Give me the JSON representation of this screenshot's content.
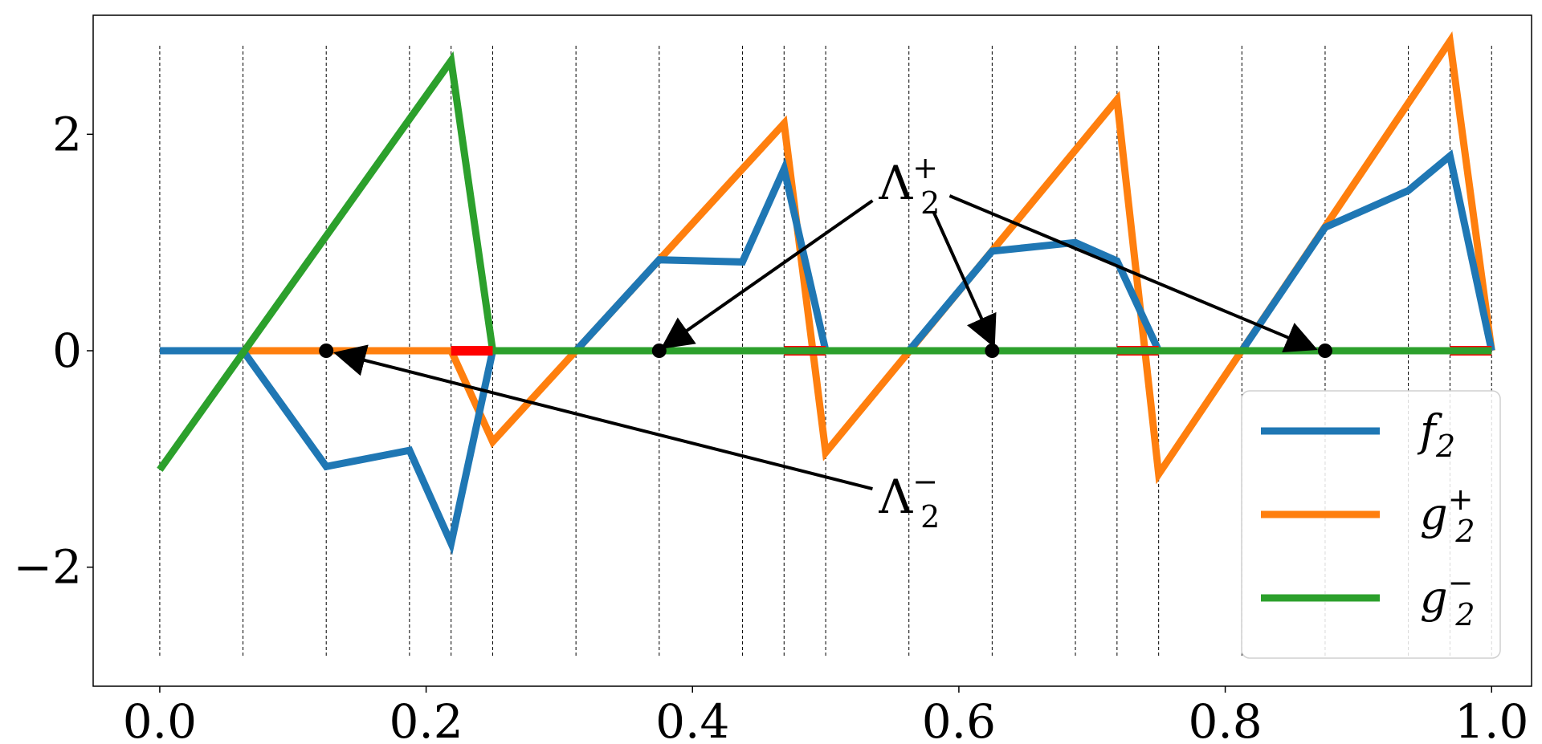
{
  "chart_data": {
    "type": "line",
    "xlim": [
      -0.05,
      1.03
    ],
    "ylim": [
      -3.1,
      3.1
    ],
    "x_ticks": [
      0.0,
      0.2,
      0.4,
      0.6,
      0.8,
      1.0
    ],
    "x_tick_labels": [
      "0.0",
      "0.2",
      "0.4",
      "0.6",
      "0.8",
      "1.0"
    ],
    "y_ticks": [
      -2,
      0,
      2
    ],
    "y_tick_labels": [
      "−2",
      "0",
      "2"
    ],
    "grid": false,
    "vertical_lines": [
      0.0,
      0.0625,
      0.125,
      0.1875,
      0.21875,
      0.25,
      0.3125,
      0.375,
      0.4375,
      0.46875,
      0.5,
      0.5625,
      0.625,
      0.6875,
      0.71875,
      0.75,
      0.8125,
      0.875,
      0.9375,
      0.96875,
      1.0
    ],
    "legend_position": "lower-right",
    "series": [
      {
        "name": "f",
        "name_sub": "2",
        "name_sup": "",
        "color": "#1f77b4",
        "points": [
          [
            0.0,
            0.0
          ],
          [
            0.0625,
            0.0
          ],
          [
            0.125,
            -1.07
          ],
          [
            0.1875,
            -0.92
          ],
          [
            0.21875,
            -1.78
          ],
          [
            0.25,
            0.0
          ],
          [
            0.3125,
            0.0
          ],
          [
            0.375,
            0.84
          ],
          [
            0.4375,
            0.82
          ],
          [
            0.46875,
            1.68
          ],
          [
            0.5,
            0.0
          ],
          [
            0.5625,
            0.0
          ],
          [
            0.625,
            0.92
          ],
          [
            0.6875,
            1.0
          ],
          [
            0.71875,
            0.83
          ],
          [
            0.75,
            0.0
          ],
          [
            0.8125,
            0.0
          ],
          [
            0.875,
            1.14
          ],
          [
            0.9375,
            1.48
          ],
          [
            0.96875,
            1.8
          ],
          [
            1.0,
            0.0
          ]
        ]
      },
      {
        "name": "g",
        "name_sub": "2",
        "name_sup": "+",
        "color": "#ff7f0e",
        "points": [
          [
            0.0,
            0.0
          ],
          [
            0.21875,
            0.0
          ],
          [
            0.25,
            -0.84
          ],
          [
            0.46875,
            2.1
          ],
          [
            0.5,
            -0.94
          ],
          [
            0.71875,
            2.32
          ],
          [
            0.75,
            -1.14
          ],
          [
            0.96875,
            2.86
          ],
          [
            1.0,
            0.0
          ]
        ]
      },
      {
        "name": "g",
        "name_sub": "2",
        "name_sup": "−",
        "color": "#2ca02c",
        "points": [
          [
            0.0,
            -1.1
          ],
          [
            0.21875,
            2.68
          ],
          [
            0.25,
            0.0
          ],
          [
            1.0,
            0.0
          ]
        ]
      }
    ],
    "highlight_segments": [
      [
        0.21875,
        0.25
      ],
      [
        0.46875,
        0.5
      ],
      [
        0.71875,
        0.75
      ],
      [
        0.96875,
        1.0
      ]
    ],
    "highlight_color": "#ff0000",
    "marker_points": [
      [
        0.125,
        0.0
      ],
      [
        0.375,
        0.0
      ],
      [
        0.625,
        0.0
      ],
      [
        0.875,
        0.0
      ]
    ],
    "annotations": [
      {
        "label": "Λ",
        "sub": "2",
        "sup": "+",
        "label_at": [
          0.54,
          1.55
        ],
        "targets": [
          [
            0.38,
            0.05
          ],
          [
            0.625,
            0.08
          ],
          [
            0.865,
            0.03
          ]
        ]
      },
      {
        "label": "Λ",
        "sub": "2",
        "sup": "−",
        "label_at": [
          0.54,
          -1.35
        ],
        "targets": [
          [
            0.135,
            -0.03
          ]
        ]
      }
    ]
  }
}
